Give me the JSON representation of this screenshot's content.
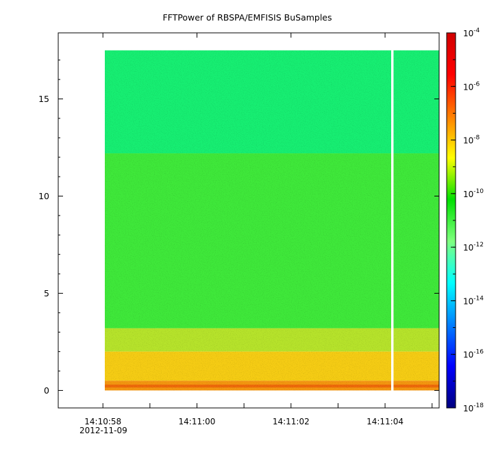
{
  "chart_data": {
    "type": "heatmap",
    "title": "FFTPower of RBSPA/EMFISIS  BuSamples",
    "xlabel": "",
    "ylabel": "",
    "x_axis": {
      "ticks": [
        {
          "label": "14:10:58",
          "seconds": 58
        },
        {
          "label": "14:11:00",
          "seconds": 60
        },
        {
          "label": "14:11:02",
          "seconds": 62
        },
        {
          "label": "14:11:04",
          "seconds": 64
        }
      ],
      "minor_ticks_seconds": [
        59,
        61,
        63,
        65
      ],
      "date_label": "2012-11-09",
      "range_seconds": [
        57.05,
        65.15
      ]
    },
    "y_axis": {
      "ticks": [
        0,
        5,
        10,
        15
      ],
      "range": [
        -0.9,
        18.4
      ]
    },
    "data_extent": {
      "x_start_seconds": 58.04,
      "x_end_seconds": 65.15,
      "gap_seconds": [
        64.13,
        64.18
      ],
      "y_min": 0,
      "y_max": 17.5
    },
    "colorbar": {
      "scale": "log",
      "range": [
        1e-18,
        0.0001
      ],
      "tick_labels": [
        {
          "base": "10",
          "exp": "-4",
          "value": 0.0001
        },
        {
          "base": "10",
          "exp": "-6",
          "value": 1e-06
        },
        {
          "base": "10",
          "exp": "-8",
          "value": 1e-08
        },
        {
          "base": "10",
          "exp": "-10",
          "value": 1e-10
        },
        {
          "base": "10",
          "exp": "-12",
          "value": 1e-12
        },
        {
          "base": "10",
          "exp": "-14",
          "value": 1e-14
        },
        {
          "base": "10",
          "exp": "-16",
          "value": 1e-16
        },
        {
          "base": "10",
          "exp": "-18",
          "value": 1e-18
        }
      ],
      "colors": [
        "#00007f",
        "#0000ff",
        "#007fff",
        "#00ffff",
        "#7fff7f",
        "#00e000",
        "#ffff00",
        "#ff7f00",
        "#ff0000",
        "#d00000"
      ]
    },
    "bands": [
      {
        "y_from": 12.2,
        "y_to": 17.5,
        "log10_power": -11.8,
        "color": "#17ee72"
      },
      {
        "y_from": 3.2,
        "y_to": 12.2,
        "log10_power": -10.6,
        "color": "#3fe83a"
      },
      {
        "y_from": 2.0,
        "y_to": 3.2,
        "log10_power": -9.5,
        "color": "#b6e32b"
      },
      {
        "y_from": 0.5,
        "y_to": 2.0,
        "log10_power": -8.2,
        "color": "#f5cc14"
      },
      {
        "y_from": 0.0,
        "y_to": 0.5,
        "log10_power": -7.2,
        "color": "#f49610"
      },
      {
        "y_from": 0.15,
        "y_to": 0.3,
        "log10_power": -6.5,
        "color": "#ee6a0a"
      }
    ],
    "colors": {
      "background": "#ffffff",
      "axis": "#000000",
      "gap": "#ffffff"
    }
  }
}
